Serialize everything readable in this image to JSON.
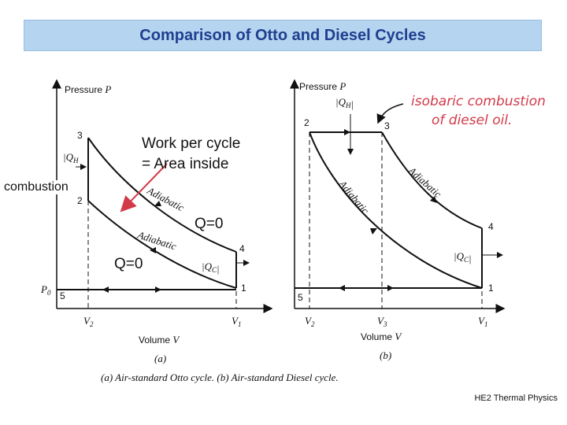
{
  "title": "Comparison of Otto and Diesel Cycles",
  "annotations": {
    "work_line1": "Work per cycle",
    "work_line2": "= Area inside",
    "combustion": "combustion",
    "q_zero_upper": "Q=0",
    "q_zero_lower": "Q=0"
  },
  "otto": {
    "y_axis_label": "Pressure",
    "y_axis_symbol": "P",
    "x_axis_label": "Volume",
    "x_axis_symbol": "V",
    "point_labels": [
      "1",
      "2",
      "3",
      "4",
      "5"
    ],
    "p0_label": "P",
    "p0_sub": "0",
    "v1_label": "V",
    "v1_sub": "1",
    "v2_label": "V",
    "v2_sub": "2",
    "qh_label": "|Q",
    "qh_sub": "H",
    "qc_label": "|Q",
    "qc_sub": "C",
    "adiabatic_upper": "Adiabatic",
    "adiabatic_lower": "Adiabatic",
    "panel_label": "(a)"
  },
  "diesel": {
    "y_axis_label": "Pressure",
    "y_axis_symbol": "P",
    "x_axis_label": "Volume",
    "x_axis_symbol": "V",
    "point_labels": [
      "1",
      "2",
      "3",
      "4",
      "5"
    ],
    "v1_label": "V",
    "v1_sub": "1",
    "v2_label": "V",
    "v2_sub": "2",
    "v3_label": "V",
    "v3_sub": "3",
    "qh_label": "|Q",
    "qh_sub": "H",
    "qc_label": "|Q",
    "qc_sub": "C",
    "adiabatic_upper": "Adiabatic",
    "adiabatic_lower": "Adiabatic",
    "panel_label": "(b)"
  },
  "handwritten_note_line1": "isobaric combustion",
  "handwritten_note_line2": "of diesel oil.",
  "caption": "(a) Air-standard Otto cycle. (b) Air-standard Diesel cycle.",
  "footer": "HE2 Thermal Physics",
  "colors": {
    "title_bg": "#b4d4f0",
    "title_text": "#1f3f8f",
    "handwriting": "#d23a4a",
    "arrow": "#d23a4a"
  }
}
